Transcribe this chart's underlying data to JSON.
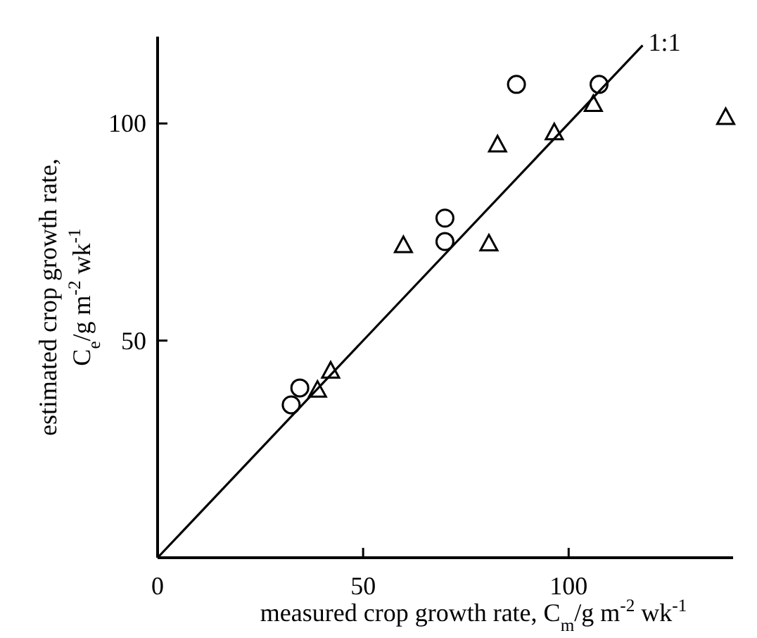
{
  "chart_data": {
    "type": "scatter",
    "xlabel": "measured crop growth rate, C$_{m}$/g m$^{-2}$ wk$^{-1}$",
    "ylabel": "estimated crop growth rate,\nC$_{e}$/g m$^{-2}$ wk$^{-1}$",
    "xlim": [
      0,
      140
    ],
    "ylim": [
      0,
      120
    ],
    "xticks": [
      0,
      50,
      100
    ],
    "yticks": [
      50,
      100
    ],
    "grid": false,
    "series": [
      {
        "marker": "circle",
        "color": "#000000",
        "x": [
          87.3,
          107.4,
          69.9,
          69.9,
          34.6,
          32.5
        ],
        "values": [
          109,
          109,
          78.2,
          72.8,
          39.1,
          35.2
        ]
      },
      {
        "marker": "triangle",
        "color": "#000000",
        "x": [
          106,
          96.5,
          82.7,
          59.8,
          80.6,
          42.1,
          38.9,
          138.2
        ],
        "values": [
          104.5,
          98,
          95.2,
          72,
          72.4,
          43.1,
          38.7,
          101.5
        ]
      },
      {
        "type": "line",
        "marker": "none",
        "color": "#000000",
        "x": [
          0,
          118
        ],
        "values": [
          0,
          118
        ]
      }
    ],
    "annotations": [
      {
        "text": "1:1",
        "x": 118,
        "y": 118
      }
    ]
  }
}
